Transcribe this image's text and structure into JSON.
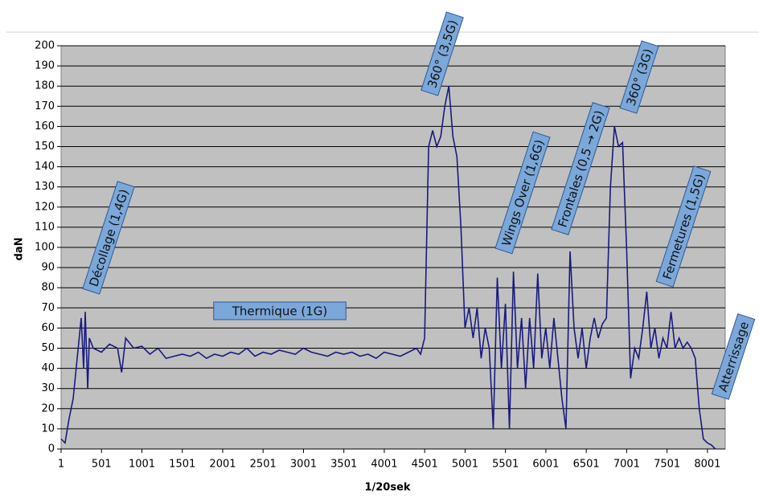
{
  "chart_data": {
    "type": "line",
    "xlabel": "1/20sek",
    "ylabel": "daN",
    "color": "#1a1a80",
    "xlim": [
      1,
      8221
    ],
    "xticks": [
      1,
      501,
      1001,
      1501,
      2001,
      2501,
      3001,
      3501,
      4001,
      4501,
      5001,
      5501,
      6001,
      6501,
      7001,
      7501,
      8001
    ],
    "ylim": [
      0,
      200
    ],
    "yticks": [
      0,
      10,
      20,
      30,
      40,
      50,
      60,
      70,
      80,
      90,
      100,
      110,
      120,
      130,
      140,
      150,
      160,
      170,
      180,
      190,
      200
    ],
    "grid": true,
    "annotations": [
      "Décollage (1,4G)",
      "Thermique (1G)",
      "360° (3,5G)",
      "Wings Over (1,6G)",
      "Frontales (0,5 → 2G)",
      "360° (3G)",
      "Fermetures (1,5G)",
      "Atterrissage"
    ],
    "x": [
      1,
      50,
      100,
      150,
      200,
      250,
      280,
      300,
      330,
      350,
      400,
      500,
      600,
      700,
      750,
      800,
      900,
      1000,
      1100,
      1200,
      1300,
      1400,
      1500,
      1600,
      1700,
      1800,
      1900,
      2000,
      2100,
      2200,
      2300,
      2400,
      2500,
      2600,
      2700,
      2800,
      2900,
      3000,
      3100,
      3200,
      3300,
      3400,
      3500,
      3600,
      3700,
      3800,
      3900,
      4000,
      4100,
      4200,
      4300,
      4400,
      4450,
      4500,
      4550,
      4600,
      4650,
      4700,
      4750,
      4800,
      4850,
      4900,
      4950,
      5000,
      5050,
      5100,
      5150,
      5200,
      5250,
      5300,
      5350,
      5400,
      5450,
      5500,
      5550,
      5600,
      5650,
      5700,
      5750,
      5800,
      5850,
      5900,
      5950,
      6000,
      6050,
      6100,
      6150,
      6200,
      6250,
      6300,
      6350,
      6400,
      6450,
      6500,
      6550,
      6600,
      6650,
      6700,
      6750,
      6800,
      6850,
      6900,
      6950,
      7000,
      7050,
      7100,
      7150,
      7200,
      7250,
      7300,
      7350,
      7400,
      7450,
      7500,
      7550,
      7600,
      7650,
      7700,
      7750,
      7800,
      7850,
      7900,
      7950,
      8000,
      8050,
      8100
    ],
    "values": [
      5,
      3,
      15,
      25,
      45,
      65,
      40,
      68,
      30,
      55,
      50,
      48,
      52,
      50,
      38,
      55,
      50,
      51,
      47,
      50,
      45,
      46,
      47,
      46,
      48,
      45,
      47,
      46,
      48,
      47,
      50,
      46,
      48,
      47,
      49,
      48,
      47,
      50,
      48,
      47,
      46,
      48,
      47,
      48,
      46,
      47,
      45,
      48,
      47,
      46,
      48,
      50,
      47,
      55,
      150,
      158,
      150,
      155,
      170,
      180,
      155,
      145,
      110,
      60,
      70,
      55,
      70,
      45,
      60,
      50,
      10,
      85,
      40,
      72,
      10,
      88,
      40,
      65,
      30,
      65,
      40,
      87,
      45,
      60,
      40,
      65,
      45,
      25,
      10,
      98,
      60,
      45,
      60,
      40,
      55,
      65,
      55,
      62,
      65,
      130,
      160,
      150,
      152,
      100,
      35,
      50,
      45,
      60,
      78,
      50,
      60,
      45,
      55,
      50,
      68,
      50,
      55,
      50,
      53,
      50,
      45,
      20,
      5,
      3,
      2,
      0
    ]
  }
}
